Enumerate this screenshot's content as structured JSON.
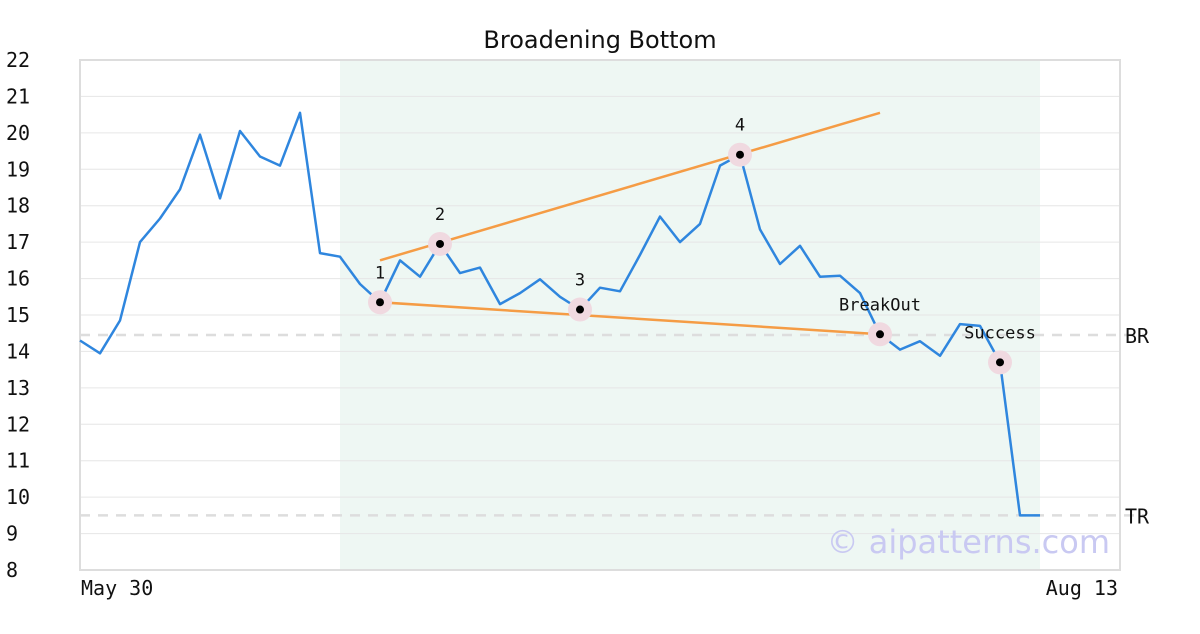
{
  "chart_data": {
    "type": "line",
    "title": "Broadening Bottom",
    "xlabel": "",
    "ylabel": "",
    "ylim": [
      8,
      22
    ],
    "yticks": [
      8,
      9,
      10,
      11,
      12,
      13,
      14,
      15,
      16,
      17,
      18,
      19,
      20,
      21,
      22
    ],
    "x_tick_labels": [
      "May 30",
      "Aug 13"
    ],
    "grid": "horizontal",
    "series": [
      {
        "values": [
          14.3,
          13.95,
          14.85,
          17.0,
          17.65,
          18.45,
          19.95,
          18.2,
          20.05,
          19.35,
          19.1,
          20.55,
          16.7,
          16.6,
          15.85,
          15.35,
          16.5,
          16.05,
          16.95,
          16.15,
          16.3,
          15.3,
          15.6,
          15.98,
          15.5,
          15.15,
          15.75,
          15.65,
          16.65,
          17.7,
          17.0,
          17.5,
          19.1,
          19.4,
          17.35,
          16.4,
          16.9,
          16.05,
          16.08,
          15.6,
          14.47,
          14.05,
          14.28,
          13.88,
          14.75,
          14.7,
          13.7,
          9.5,
          9.5
        ]
      }
    ],
    "highlight_band": {
      "from_index": 13,
      "to_index": 48
    },
    "trend_lines": [
      {
        "points": [
          [
            15,
            16.5
          ],
          [
            40,
            20.55
          ]
        ]
      },
      {
        "points": [
          [
            15,
            15.35
          ],
          [
            40,
            14.47
          ]
        ]
      }
    ],
    "markers": [
      {
        "index": 15,
        "value": 15.35,
        "label": "1"
      },
      {
        "index": 18,
        "value": 16.95,
        "label": "2"
      },
      {
        "index": 25,
        "value": 15.15,
        "label": "3"
      },
      {
        "index": 33,
        "value": 19.4,
        "label": "4"
      },
      {
        "index": 40,
        "value": 14.47,
        "label": "BreakOut"
      },
      {
        "index": 46,
        "value": 13.7,
        "label": "Success"
      }
    ],
    "reference_lines": [
      {
        "value": 14.45,
        "label": "BR"
      },
      {
        "value": 9.5,
        "label": "TR"
      }
    ],
    "watermark": "© aipatterns.com",
    "colors": {
      "price_line": "#2f86de",
      "trend_line": "#f59c45",
      "band": "#eef7f3",
      "marker_halo": "#f0d9e0",
      "marker_dot": "#000000",
      "ref_line": "#dddddd",
      "grid": "#e6e6e6",
      "frame": "#dddddd"
    }
  }
}
